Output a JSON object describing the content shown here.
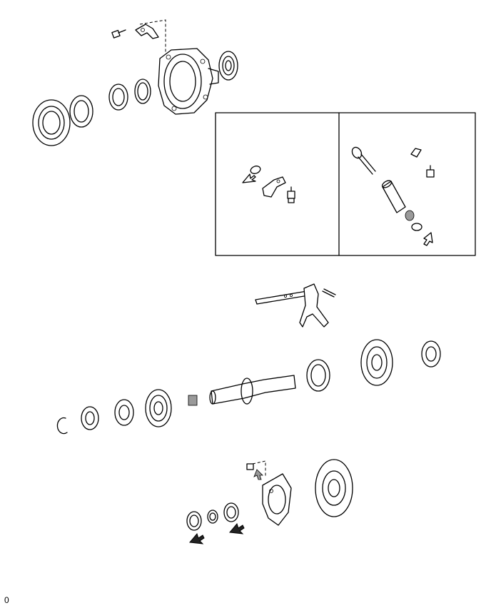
{
  "diagram": {
    "footer_code": "0",
    "colors": {
      "line": "#000000",
      "background": "#ffffff",
      "shade": "#9a9a9a"
    }
  }
}
